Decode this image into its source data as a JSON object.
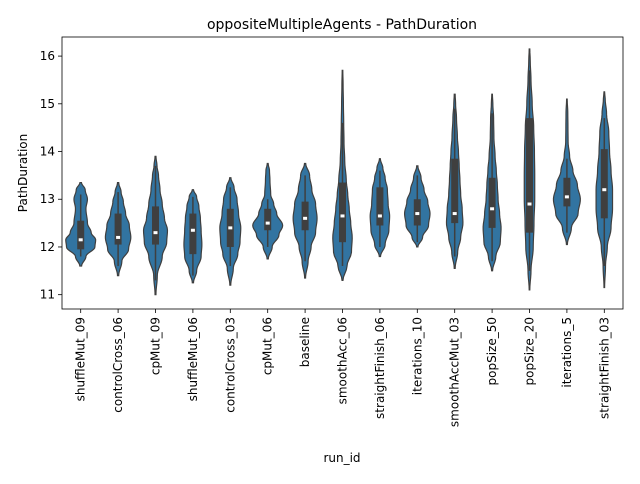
{
  "chart_data": {
    "type": "violin",
    "title": "oppositeMultipleAgents - PathDuration",
    "xlabel": "run_id",
    "ylabel": "PathDuration",
    "ylim": [
      10.7,
      16.4
    ],
    "yticks": [
      11,
      12,
      13,
      14,
      15,
      16
    ],
    "grid": false,
    "color": "#3274a1",
    "categories": [
      "shuffleMut_09",
      "controlCross_06",
      "cpMut_09",
      "shuffleMut_06",
      "controlCross_03",
      "cpMut_06",
      "baseline",
      "smoothAcc_06",
      "straightFinish_06",
      "iterations_10",
      "smoothAccMut_03",
      "popSize_50",
      "popSize_20",
      "iterations_5",
      "straightFinish_03"
    ],
    "series": [
      {
        "category": "shuffleMut_09",
        "min": 11.6,
        "max": 13.35,
        "q1": 11.95,
        "median": 12.15,
        "q3": 12.55,
        "whisker_low": 11.8,
        "whisker_high": 13.1,
        "y": [
          11.6,
          11.8,
          12.0,
          12.15,
          12.3,
          12.5,
          12.8,
          13.0,
          13.2,
          13.35
        ],
        "w": [
          0.06,
          0.35,
          0.95,
          1.0,
          0.7,
          0.45,
          0.35,
          0.45,
          0.3,
          0.05
        ]
      },
      {
        "category": "controlCross_06",
        "min": 11.4,
        "max": 13.35,
        "q1": 12.05,
        "median": 12.2,
        "q3": 12.7,
        "whisker_low": 11.6,
        "whisker_high": 13.15,
        "y": [
          11.4,
          11.7,
          11.95,
          12.2,
          12.45,
          12.7,
          12.95,
          13.15,
          13.35
        ],
        "w": [
          0.04,
          0.25,
          0.7,
          0.85,
          0.75,
          0.5,
          0.35,
          0.2,
          0.04
        ]
      },
      {
        "category": "cpMut_09",
        "min": 11.0,
        "max": 13.9,
        "q1": 12.05,
        "median": 12.3,
        "q3": 12.85,
        "whisker_low": 11.3,
        "whisker_high": 13.7,
        "y": [
          11.0,
          11.4,
          11.8,
          12.1,
          12.35,
          12.6,
          12.9,
          13.2,
          13.5,
          13.7,
          13.9
        ],
        "w": [
          0.03,
          0.12,
          0.45,
          0.75,
          0.8,
          0.6,
          0.45,
          0.3,
          0.2,
          0.1,
          0.03
        ]
      },
      {
        "category": "shuffleMut_06",
        "min": 11.25,
        "max": 13.2,
        "q1": 11.85,
        "median": 12.35,
        "q3": 12.7,
        "whisker_low": 11.4,
        "whisker_high": 13.05,
        "y": [
          11.25,
          11.5,
          11.8,
          12.05,
          12.35,
          12.6,
          12.85,
          13.05,
          13.2
        ],
        "w": [
          0.04,
          0.25,
          0.55,
          0.6,
          0.55,
          0.5,
          0.4,
          0.25,
          0.04
        ]
      },
      {
        "category": "controlCross_03",
        "min": 11.2,
        "max": 13.45,
        "q1": 12.0,
        "median": 12.4,
        "q3": 12.8,
        "whisker_low": 11.6,
        "whisker_high": 13.25,
        "y": [
          11.2,
          11.55,
          11.85,
          12.1,
          12.4,
          12.7,
          13.0,
          13.25,
          13.45
        ],
        "w": [
          0.03,
          0.2,
          0.5,
          0.65,
          0.7,
          0.55,
          0.45,
          0.25,
          0.04
        ]
      },
      {
        "category": "cpMut_06",
        "min": 11.75,
        "max": 13.75,
        "q1": 12.35,
        "median": 12.5,
        "q3": 12.8,
        "whisker_low": 12.0,
        "whisker_high": 13.0,
        "y": [
          11.75,
          12.0,
          12.25,
          12.45,
          12.7,
          12.9,
          13.1,
          13.4,
          13.6,
          13.75
        ],
        "w": [
          0.04,
          0.3,
          0.75,
          1.0,
          0.6,
          0.4,
          0.2,
          0.15,
          0.12,
          0.03
        ]
      },
      {
        "category": "baseline",
        "min": 11.35,
        "max": 13.75,
        "q1": 12.35,
        "median": 12.6,
        "q3": 12.95,
        "whisker_low": 11.7,
        "whisker_high": 13.5,
        "y": [
          11.35,
          11.7,
          12.0,
          12.3,
          12.6,
          12.9,
          13.2,
          13.5,
          13.75
        ],
        "w": [
          0.03,
          0.2,
          0.4,
          0.7,
          0.8,
          0.7,
          0.45,
          0.3,
          0.04
        ]
      },
      {
        "category": "smoothAcc_06",
        "min": 11.3,
        "max": 15.7,
        "q1": 12.1,
        "median": 12.65,
        "q3": 13.35,
        "whisker_low": 11.6,
        "whisker_high": 14.6,
        "y": [
          11.3,
          11.6,
          11.9,
          12.2,
          12.5,
          12.8,
          13.1,
          13.4,
          13.8,
          14.2,
          14.6,
          15.0,
          15.4,
          15.7
        ],
        "w": [
          0.03,
          0.3,
          0.6,
          0.65,
          0.55,
          0.45,
          0.35,
          0.25,
          0.15,
          0.1,
          0.08,
          0.06,
          0.04,
          0.02
        ]
      },
      {
        "category": "straightFinish_06",
        "min": 11.8,
        "max": 13.85,
        "q1": 12.45,
        "median": 12.65,
        "q3": 13.25,
        "whisker_low": 12.0,
        "whisker_high": 13.6,
        "y": [
          11.8,
          12.05,
          12.35,
          12.65,
          12.9,
          13.2,
          13.45,
          13.65,
          13.85
        ],
        "w": [
          0.04,
          0.35,
          0.6,
          0.65,
          0.55,
          0.5,
          0.35,
          0.2,
          0.03
        ]
      },
      {
        "category": "iterations_10",
        "min": 12.0,
        "max": 13.7,
        "q1": 12.45,
        "median": 12.7,
        "q3": 13.0,
        "whisker_low": 12.1,
        "whisker_high": 13.5,
        "y": [
          12.0,
          12.2,
          12.45,
          12.7,
          12.95,
          13.2,
          13.45,
          13.7
        ],
        "w": [
          0.04,
          0.35,
          0.75,
          0.85,
          0.7,
          0.45,
          0.25,
          0.04
        ]
      },
      {
        "category": "smoothAccMut_03",
        "min": 11.55,
        "max": 15.2,
        "q1": 12.5,
        "median": 12.7,
        "q3": 13.85,
        "whisker_low": 11.8,
        "whisker_high": 14.9,
        "y": [
          11.55,
          11.9,
          12.2,
          12.5,
          12.8,
          13.1,
          13.4,
          13.7,
          14.0,
          14.3,
          14.7,
          15.0,
          15.2
        ],
        "w": [
          0.03,
          0.2,
          0.4,
          0.55,
          0.5,
          0.4,
          0.35,
          0.3,
          0.25,
          0.18,
          0.12,
          0.06,
          0.03
        ]
      },
      {
        "category": "popSize_50",
        "min": 11.5,
        "max": 15.2,
        "q1": 12.4,
        "median": 12.8,
        "q3": 13.45,
        "whisker_low": 11.7,
        "whisker_high": 14.8,
        "y": [
          11.5,
          11.8,
          12.1,
          12.4,
          12.7,
          13.0,
          13.3,
          13.6,
          13.9,
          14.3,
          14.7,
          15.0,
          15.2
        ],
        "w": [
          0.03,
          0.25,
          0.55,
          0.6,
          0.5,
          0.4,
          0.35,
          0.28,
          0.2,
          0.12,
          0.1,
          0.05,
          0.02
        ]
      },
      {
        "category": "popSize_20",
        "min": 11.1,
        "max": 16.15,
        "q1": 12.3,
        "median": 12.9,
        "q3": 14.7,
        "whisker_low": 11.5,
        "whisker_high": 15.7,
        "y": [
          11.1,
          11.5,
          12.0,
          12.5,
          13.0,
          13.5,
          14.0,
          14.5,
          15.0,
          15.5,
          15.9,
          16.15
        ],
        "w": [
          0.02,
          0.1,
          0.25,
          0.3,
          0.35,
          0.35,
          0.33,
          0.28,
          0.18,
          0.1,
          0.05,
          0.02
        ]
      },
      {
        "category": "iterations_5",
        "min": 12.05,
        "max": 15.1,
        "q1": 12.85,
        "median": 13.05,
        "q3": 13.45,
        "whisker_low": 12.3,
        "whisker_high": 13.85,
        "y": [
          12.05,
          12.4,
          12.7,
          13.0,
          13.3,
          13.6,
          13.9,
          14.2,
          14.5,
          14.8,
          15.1
        ],
        "w": [
          0.03,
          0.3,
          0.75,
          0.9,
          0.7,
          0.4,
          0.18,
          0.08,
          0.07,
          0.06,
          0.02
        ]
      },
      {
        "category": "straightFinish_03",
        "min": 11.15,
        "max": 15.25,
        "q1": 12.6,
        "median": 13.2,
        "q3": 14.05,
        "whisker_low": 11.6,
        "whisker_high": 14.7,
        "y": [
          11.15,
          11.6,
          12.0,
          12.4,
          12.8,
          13.2,
          13.6,
          14.0,
          14.4,
          14.8,
          15.1,
          15.25
        ],
        "w": [
          0.02,
          0.08,
          0.2,
          0.45,
          0.55,
          0.55,
          0.45,
          0.35,
          0.3,
          0.15,
          0.06,
          0.02
        ]
      }
    ]
  }
}
